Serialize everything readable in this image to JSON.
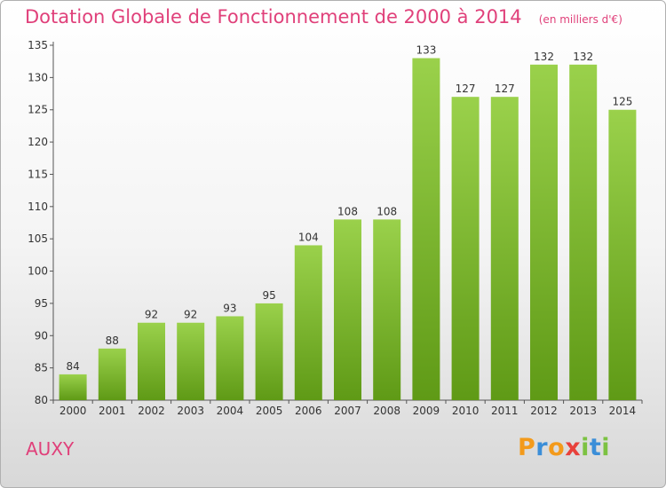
{
  "header": {
    "title": "Dotation Globale de Fonctionnement de 2000 à 2014",
    "subtitle": "(en milliers d'€)"
  },
  "footer": {
    "place": "AUXY",
    "logo_letters": [
      "P",
      "r",
      "o",
      "x",
      "i",
      "t",
      "i"
    ]
  },
  "colors": {
    "title": "#e0407a",
    "bar_top": "#9ad14b",
    "bar_bottom": "#5f9a16"
  },
  "chart_data": {
    "type": "bar",
    "title": "Dotation Globale de Fonctionnement de 2000 à 2014",
    "subtitle": "(en milliers d'€)",
    "categories": [
      "2000",
      "2001",
      "2002",
      "2003",
      "2004",
      "2005",
      "2006",
      "2007",
      "2008",
      "2009",
      "2010",
      "2011",
      "2012",
      "2013",
      "2014"
    ],
    "values": [
      84,
      88,
      92,
      92,
      93,
      95,
      104,
      108,
      108,
      133,
      127,
      127,
      132,
      132,
      125
    ],
    "ylim": [
      80,
      135
    ],
    "yticks": [
      80,
      85,
      90,
      95,
      100,
      105,
      110,
      115,
      120,
      125,
      130,
      135
    ],
    "grid": false,
    "xlabel": "",
    "ylabel": ""
  }
}
